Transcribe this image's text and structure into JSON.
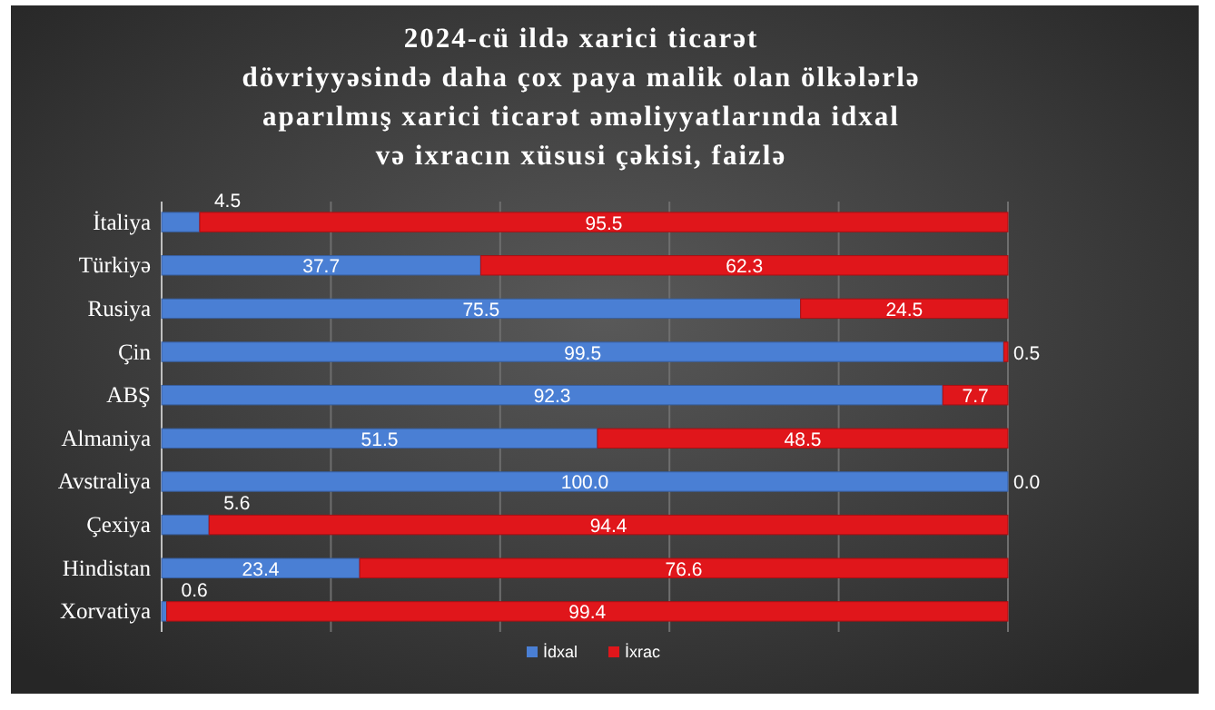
{
  "chart_data": {
    "type": "bar",
    "orientation": "horizontal",
    "stacked": true,
    "title": "2024-cü ildə xarici ticarət\ndövriyyəsində daha çox paya malik olan ölkələrlə\naparılmış xarici ticarət əməliyyatlarında idxal\nvə ixracın xüsusi çəkisi, faizlə",
    "categories": [
      "İtaliya",
      "Türkiyə",
      "Rusiya",
      "Çin",
      "ABŞ",
      "Almaniya",
      "Avstraliya",
      "Çexiya",
      "Hindistan",
      "Xorvatiya"
    ],
    "series": [
      {
        "name": "İdxal",
        "color": "#4a7fd4",
        "values": [
          4.5,
          37.7,
          75.5,
          99.5,
          92.3,
          51.5,
          100,
          5.6,
          23.4,
          0.6
        ],
        "value_labels": [
          "4.5",
          "37.7",
          "75.5",
          "99.5",
          "92.3",
          "51.5",
          "100.0",
          "5.6",
          "23.4",
          "0.6"
        ]
      },
      {
        "name": "İxrac",
        "color": "#e0161b",
        "values": [
          95.5,
          62.3,
          24.5,
          0.5,
          7.7,
          48.5,
          0,
          94.4,
          76.6,
          99.4
        ],
        "value_labels": [
          "95.5",
          "62.3",
          "24.5",
          "0.5",
          "7.7",
          "48.5",
          "0.0",
          "94.4",
          "76.6",
          "99.4"
        ]
      }
    ],
    "xlim": [
      0,
      100
    ],
    "xticks": [
      {
        "value": 0,
        "label": null
      },
      {
        "value": 20,
        "label": null
      },
      {
        "value": 40,
        "label": null
      },
      {
        "value": 60,
        "label": null
      },
      {
        "value": 80,
        "label": null
      },
      {
        "value": 100,
        "label": null
      }
    ],
    "tick_labels": "y",
    "grid": "x",
    "legend": "bottom"
  }
}
